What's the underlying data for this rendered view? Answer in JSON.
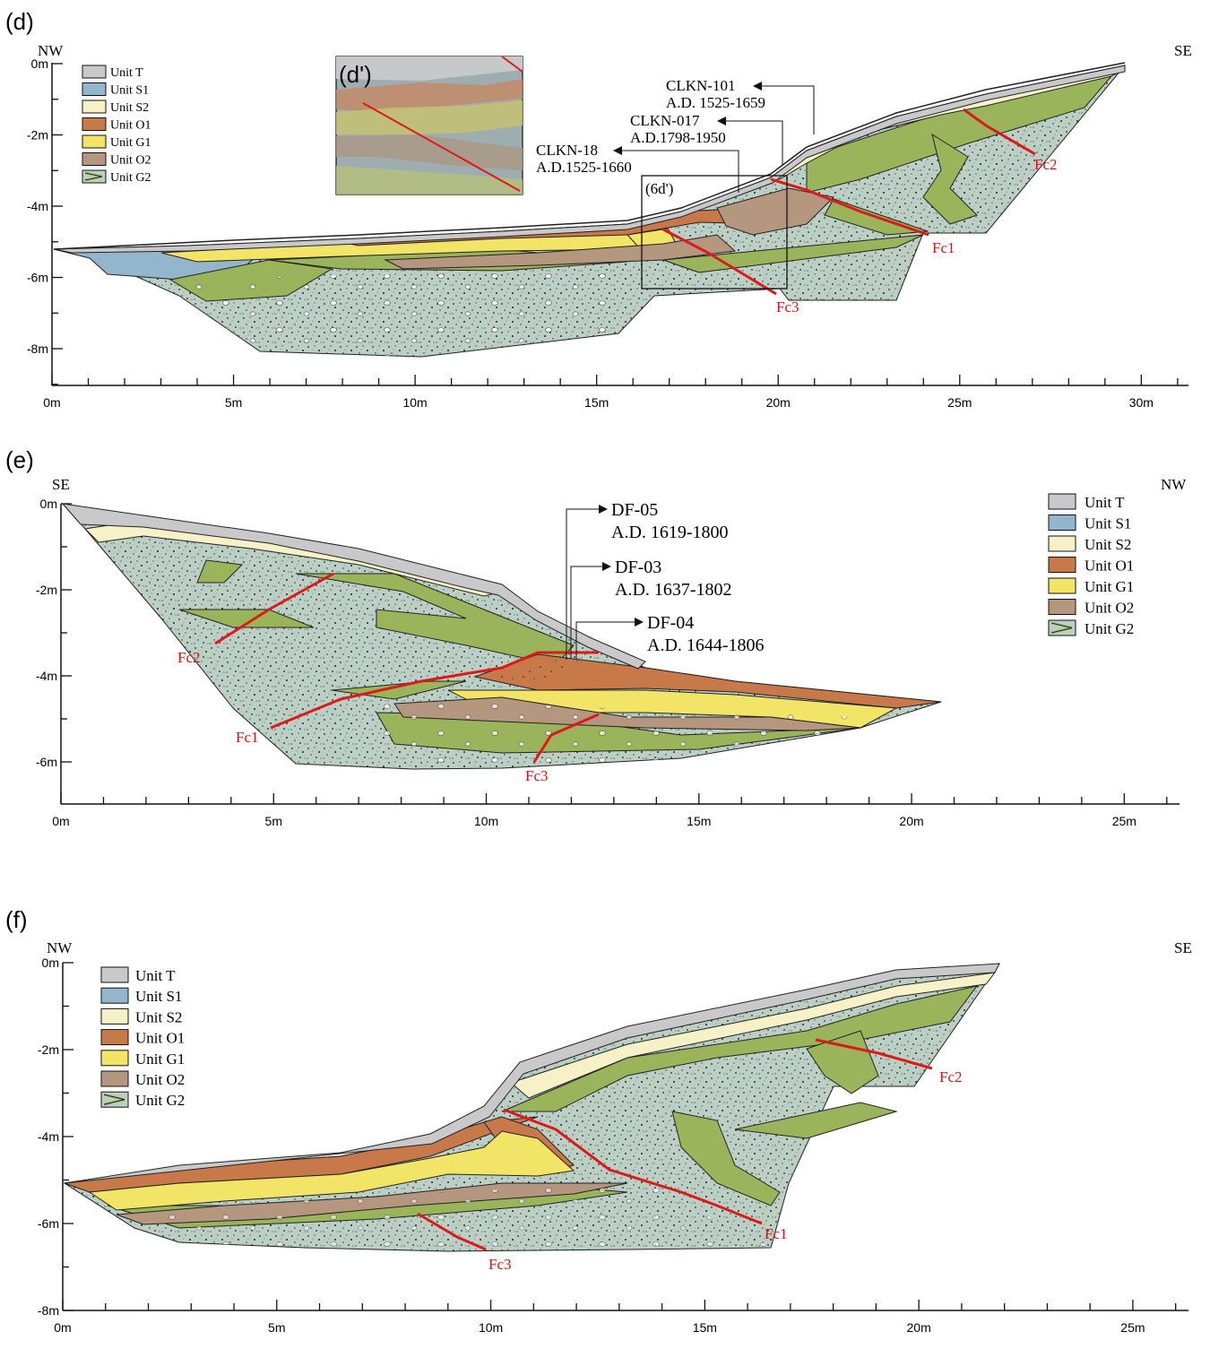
{
  "colors": {
    "unit_T": "#c9c9cb",
    "unit_S1": "#93b6cc",
    "unit_S2": "#f7f1c8",
    "unit_O1": "#c8794a",
    "unit_G1": "#f2e466",
    "unit_O2": "#b4977e",
    "unit_G2_matrix": "#bccfc4",
    "unit_G2_lens": "#9ab45c",
    "fault": "#dd1a1a"
  },
  "legend": [
    "Unit T",
    "Unit S1",
    "Unit S2",
    "Unit O1",
    "Unit G1",
    "Unit O2",
    "Unit G2"
  ],
  "panels": {
    "d": {
      "label": "(d)",
      "left_dir": "NW",
      "right_dir": "SE",
      "x_ticks": [
        "0m",
        "5m",
        "10m",
        "15m",
        "20m",
        "25m",
        "30m"
      ],
      "y_ticks": [
        "0m",
        "-2m",
        "-4m",
        "-6m",
        "-8m"
      ],
      "inset_label": "(d')",
      "box_label": "(6d')",
      "faults": [
        "Fc1",
        "Fc2",
        "Fc3"
      ],
      "samples": [
        {
          "id": "CLKN-101",
          "age": "A.D. 1525-1659"
        },
        {
          "id": "CLKN-017",
          "age": "A.D.1798-1950"
        },
        {
          "id": "CLKN-18",
          "age": "A.D.1525-1660"
        }
      ]
    },
    "e": {
      "label": "(e)",
      "left_dir": "SE",
      "right_dir": "NW",
      "x_ticks": [
        "0m",
        "5m",
        "10m",
        "15m",
        "20m",
        "25m"
      ],
      "y_ticks": [
        "0m",
        "-2m",
        "-4m",
        "-6m"
      ],
      "faults": [
        "Fc2",
        "Fc1",
        "Fc3"
      ],
      "samples": [
        {
          "id": "DF-05",
          "age": "A.D. 1619-1800"
        },
        {
          "id": "DF-03",
          "age": "A.D. 1637-1802"
        },
        {
          "id": "DF-04",
          "age": "A.D. 1644-1806"
        }
      ]
    },
    "f": {
      "label": "(f)",
      "left_dir": "NW",
      "right_dir": "SE",
      "x_ticks": [
        "0m",
        "5m",
        "10m",
        "15m",
        "20m",
        "25m"
      ],
      "y_ticks": [
        "0m",
        "-2m",
        "-4m",
        "-6m",
        "-8m"
      ],
      "faults": [
        "Fc2",
        "Fc1",
        "Fc3"
      ]
    }
  }
}
